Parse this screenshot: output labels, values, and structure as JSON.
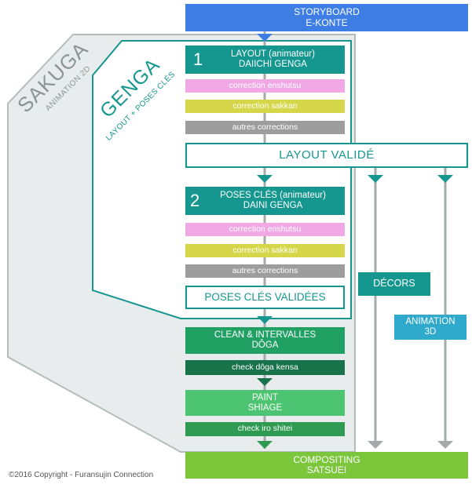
{
  "colors": {
    "blue": "#3d7de4",
    "teal": "#15978f",
    "green": "#21a064",
    "dark_green": "#18734a",
    "light_green": "#4cc472",
    "mid_green": "#2f9a52",
    "lime": "#7cc63c",
    "pink": "#f0a9e4",
    "yellow": "#d6d64a",
    "gray": "#9d9d9d",
    "cyan": "#2fa9cc",
    "sakuga_bg": "#e9ecec",
    "sakuga_border": "#b4bcbc",
    "arrow": "#a4aaaa"
  },
  "storyboard": {
    "line1": "STORYBOARD",
    "line2": "E-KONTE"
  },
  "sakuga": {
    "title": "SAKUGA",
    "subtitle": "ANIMATION 2D"
  },
  "genga": {
    "title": "GENGA",
    "subtitle": "LAYOUT + POSES CLÉS"
  },
  "layout_step": {
    "number": "1",
    "line1": "LAYOUT (animateur)",
    "line2": "DAIICHI GENGA"
  },
  "layout_corrections": [
    "correction enshutsu",
    "correction sakkan",
    "autres corrections"
  ],
  "layout_valide": "LAYOUT VALIDÉ",
  "poses_step": {
    "number": "2",
    "line1": "POSES CLÉS (animateur)",
    "line2": "DAINI GENGA"
  },
  "poses_corrections": [
    "correction enshutsu",
    "correction sakkan",
    "autres corrections"
  ],
  "poses_validees": "POSES CLÉS VALIDÉES",
  "clean": {
    "line1": "CLEAN & INTERVALLES",
    "line2": "DÔGA"
  },
  "check_doga": "check dôga kensa",
  "paint": {
    "line1": "PAINT",
    "line2": "SHIAGE"
  },
  "check_iro": "check iro shitei",
  "decors": "DÉCORS",
  "animation3d": {
    "line1": "ANIMATION",
    "line2": "3D"
  },
  "compositing": {
    "line1": "COMPOSITING",
    "line2": "SATSUEI"
  },
  "copyright": "©2016 Copyright - Furansujin Connection"
}
